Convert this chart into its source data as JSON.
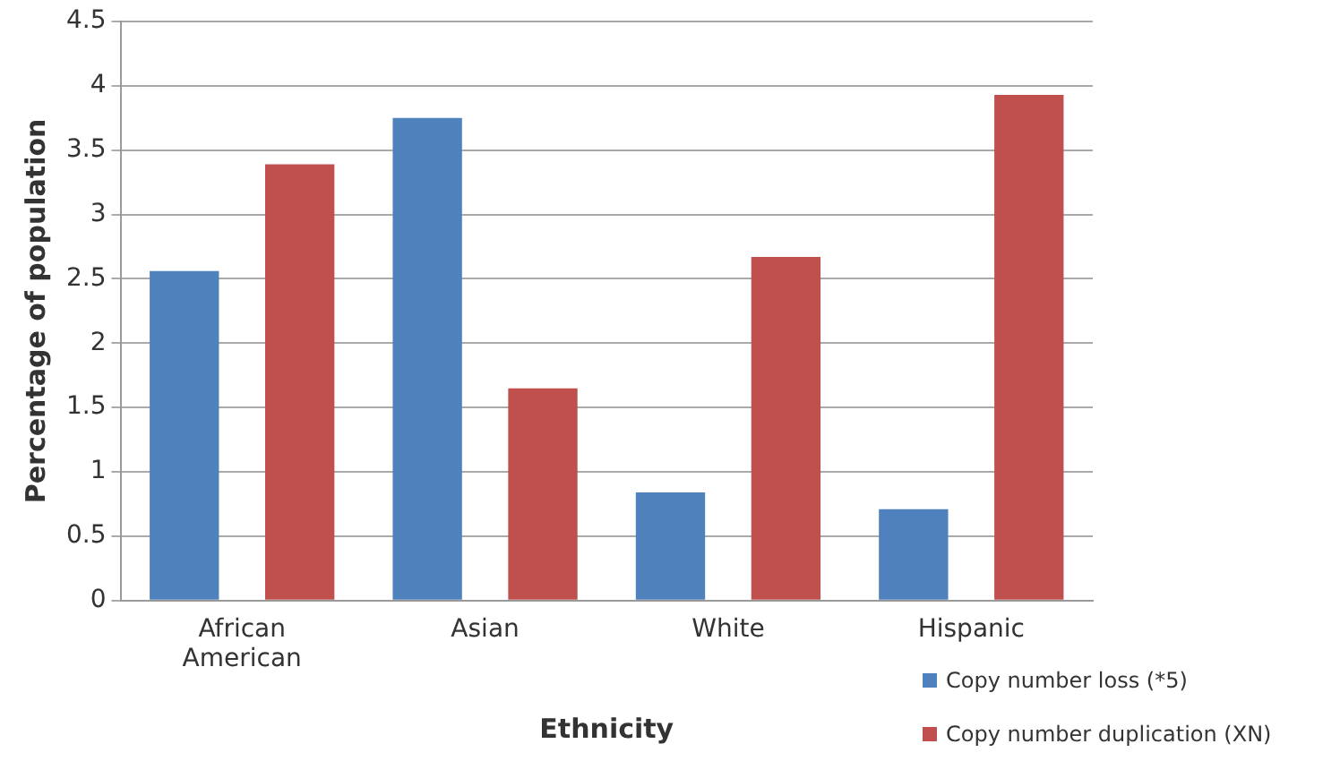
{
  "chart_data": {
    "type": "bar",
    "xlabel": "Ethnicity",
    "ylabel": "Percentage of population",
    "categories": [
      "African American",
      "Asian",
      "White",
      "Hispanic"
    ],
    "series": [
      {
        "name": "Copy number loss (*5)",
        "color": "#4f81bd",
        "values": [
          2.56,
          3.75,
          0.84,
          0.71
        ]
      },
      {
        "name": "Copy number duplication (XN)",
        "color": "#c0504d",
        "values": [
          3.39,
          1.65,
          2.67,
          3.93
        ]
      }
    ],
    "ylim": [
      0,
      4.5
    ],
    "yticks": [
      0,
      0.5,
      1,
      1.5,
      2,
      2.5,
      3,
      3.5,
      4,
      4.5
    ],
    "grid": "y",
    "legend": "bottom right"
  }
}
